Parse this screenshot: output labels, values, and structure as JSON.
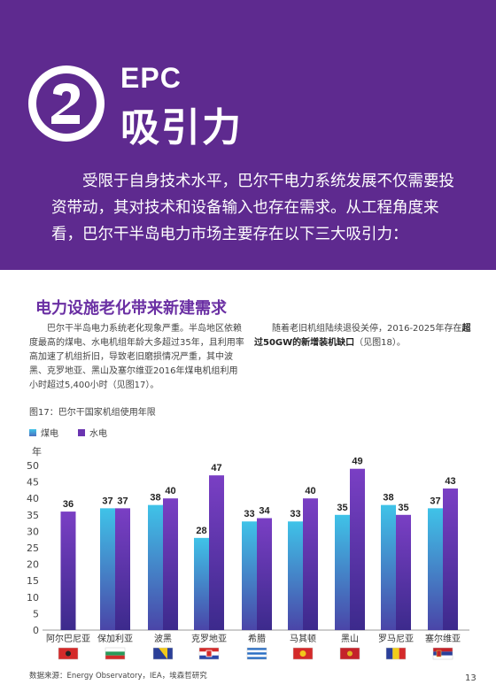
{
  "banner": {
    "badge_number": "2",
    "title_top": "EPC",
    "title_main": "吸引力",
    "intro": "受限于自身技术水平，巴尔干电力系统发展不仅需要投资带动，其对技术和设备输入也存在需求。从工程角度来看，巴尔干半岛电力市场主要存在以下三大吸引力："
  },
  "section": {
    "heading": "电力设施老化带来新建需求",
    "left_paragraph": "巴尔干半岛电力系统老化现象严重。半岛地区依赖度最高的煤电、水电机组年龄大多超过35年，且利用率高加速了机组折旧，导致老旧磨损情况严重，其中波黑、克罗地亚、黑山及塞尔维亚2016年煤电机组利用小时超过5,400小时（见图17）。",
    "right_before": "随着老旧机组陆续退役关停，2016-2025年存在",
    "right_bold": "超过50GW的新增装机缺口",
    "right_after": "（见图18）。"
  },
  "figure": {
    "caption": "图17：巴尔干国家机组使用年限",
    "source": "数据来源：Energy Observatory，IEA，埃森哲研究"
  },
  "page_number": "13",
  "colors": {
    "banner": "#5e2a8f",
    "coal_top": "#3fc3e8",
    "coal_bottom": "#4d3fa0",
    "hydro_top": "#7a3fc0",
    "hydro_bottom": "#3f2a8f"
  },
  "chart_data": {
    "type": "bar",
    "ylabel": "年",
    "ylim": [
      0,
      50
    ],
    "yticks": [
      0,
      5,
      10,
      15,
      20,
      25,
      30,
      35,
      40,
      45,
      50
    ],
    "categories": [
      "阿尔巴尼亚",
      "保加利亚",
      "波黑",
      "克罗地亚",
      "希腊",
      "马其顿",
      "黑山",
      "罗马尼亚",
      "塞尔维亚"
    ],
    "flags": [
      "albania-flag-icon",
      "bulgaria-flag-icon",
      "bosnia-flag-icon",
      "croatia-flag-icon",
      "greece-flag-icon",
      "macedonia-flag-icon",
      "montenegro-flag-icon",
      "romania-flag-icon",
      "serbia-flag-icon"
    ],
    "series": [
      {
        "name": "煤电",
        "values": [
          null,
          37,
          38,
          28,
          33,
          33,
          35,
          38,
          37
        ]
      },
      {
        "name": "水电",
        "values": [
          36,
          37,
          40,
          47,
          34,
          40,
          49,
          35,
          43
        ]
      }
    ],
    "legend": "top-left"
  }
}
